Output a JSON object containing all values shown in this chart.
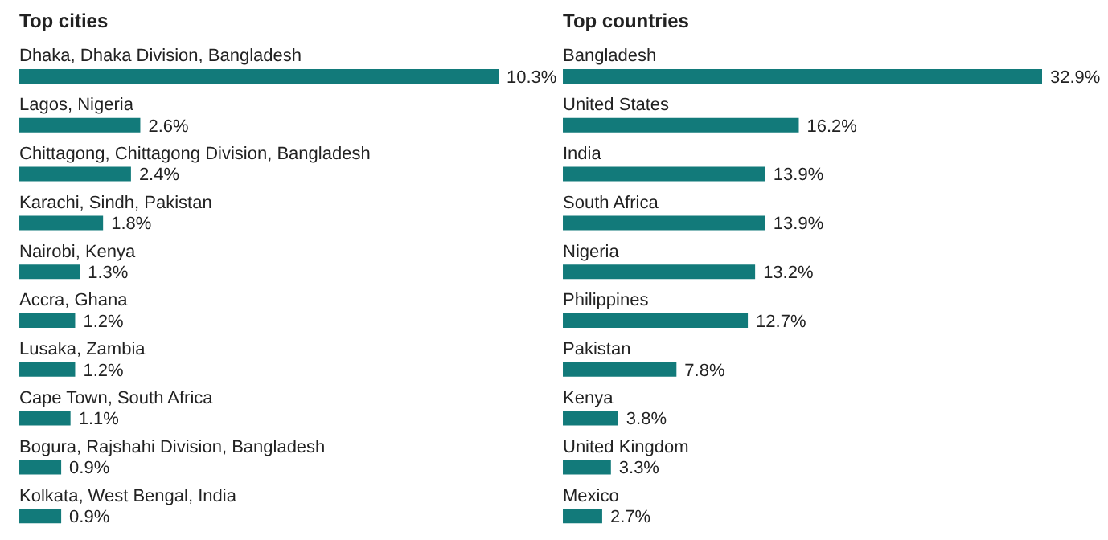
{
  "chart_data": [
    {
      "type": "bar",
      "orientation": "horizontal",
      "title": "Top cities",
      "categories": [
        "Dhaka, Dhaka Division, Bangladesh",
        "Lagos, Nigeria",
        "Chittagong, Chittagong Division, Bangladesh",
        "Karachi, Sindh, Pakistan",
        "Nairobi, Kenya",
        "Accra, Ghana",
        "Lusaka, Zambia",
        "Cape Town, South Africa",
        "Bogura, Rajshahi Division, Bangladesh",
        "Kolkata, West Bengal, India"
      ],
      "values": [
        10.3,
        2.6,
        2.4,
        1.8,
        1.3,
        1.2,
        1.2,
        1.1,
        0.9,
        0.9
      ],
      "value_labels": [
        "10.3%",
        "2.6%",
        "2.4%",
        "1.8%",
        "1.3%",
        "1.2%",
        "1.2%",
        "1.1%",
        "0.9%",
        "0.9%"
      ],
      "color": "#127a7a"
    },
    {
      "type": "bar",
      "orientation": "horizontal",
      "title": "Top countries",
      "categories": [
        "Bangladesh",
        "United States",
        "India",
        "South Africa",
        "Nigeria",
        "Philippines",
        "Pakistan",
        "Kenya",
        "United Kingdom",
        "Mexico"
      ],
      "values": [
        32.9,
        16.2,
        13.9,
        13.9,
        13.2,
        12.7,
        7.8,
        3.8,
        3.3,
        2.7
      ],
      "value_labels": [
        "32.9%",
        "16.2%",
        "13.9%",
        "13.9%",
        "13.2%",
        "12.7%",
        "7.8%",
        "3.8%",
        "3.3%",
        "2.7%"
      ],
      "color": "#127a7a"
    }
  ]
}
